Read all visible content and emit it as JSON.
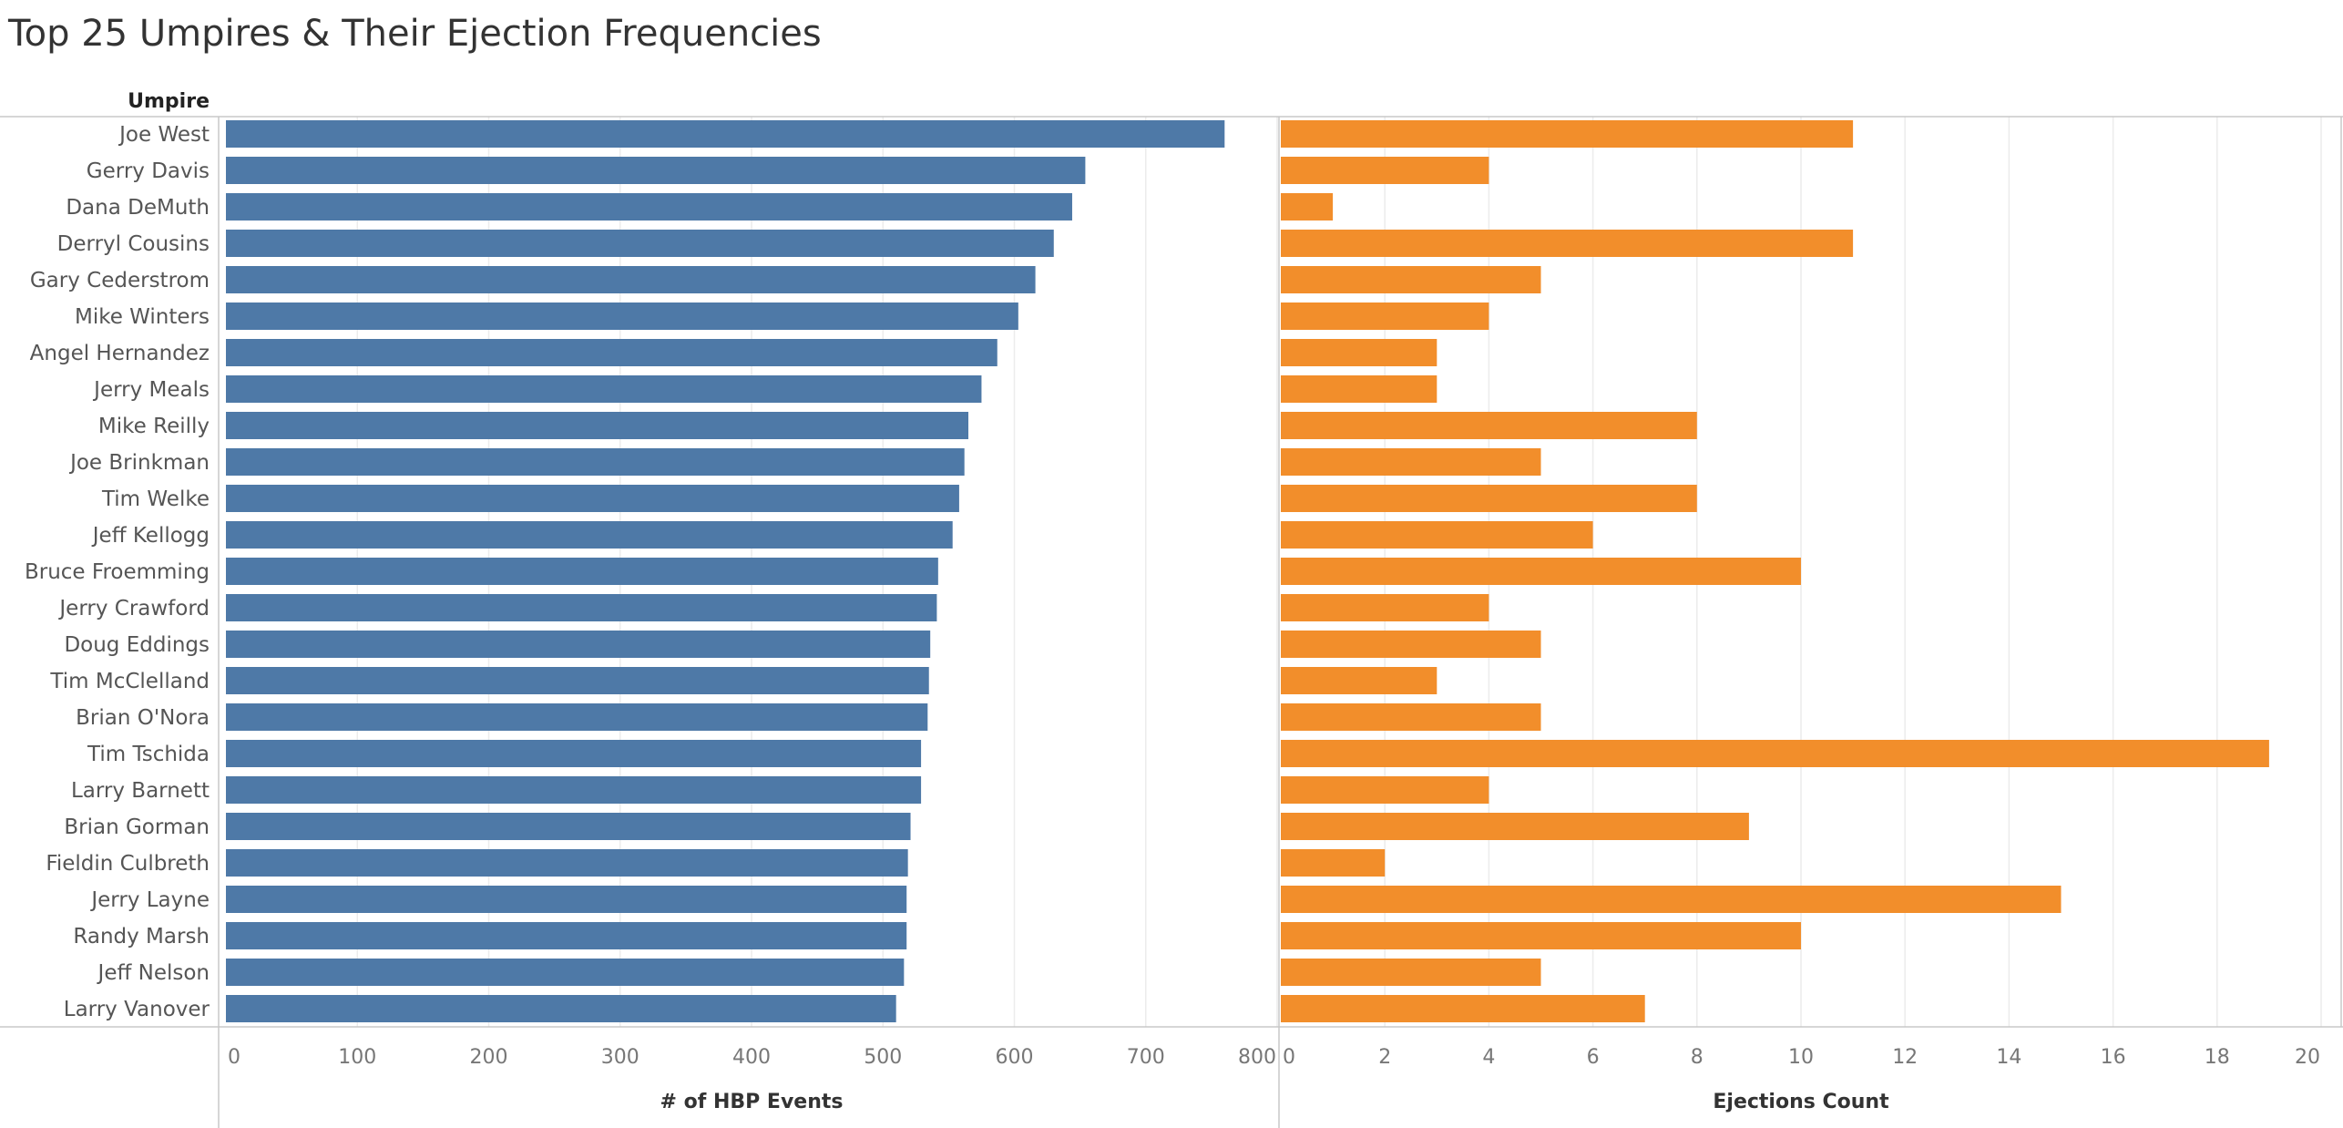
{
  "title": "Top 25 Umpires & Their Ejection Frequencies",
  "chart_data": {
    "type": "bar",
    "orientation": "horizontal",
    "row_header": "Umpire",
    "categories": [
      "Joe West",
      "Gerry Davis",
      "Dana DeMuth",
      "Derryl Cousins",
      "Gary Cederstrom",
      "Mike Winters",
      "Angel Hernandez",
      "Jerry Meals",
      "Mike Reilly",
      "Joe Brinkman",
      "Tim Welke",
      "Jeff Kellogg",
      "Bruce Froemming",
      "Jerry Crawford",
      "Doug Eddings",
      "Tim McClelland",
      "Brian O'Nora",
      "Tim Tschida",
      "Larry Barnett",
      "Brian Gorman",
      "Fieldin Culbreth",
      "Jerry Layne",
      "Randy Marsh",
      "Jeff Nelson",
      "Larry Vanover"
    ],
    "panels": [
      {
        "xlabel": "# of HBP Events",
        "xlim": [
          0,
          800
        ],
        "ticks": [
          0,
          100,
          200,
          300,
          400,
          500,
          600,
          700,
          800
        ],
        "color": "#4e79a7",
        "values": [
          760,
          654,
          644,
          630,
          616,
          603,
          587,
          575,
          565,
          562,
          558,
          553,
          542,
          541,
          536,
          535,
          534,
          529,
          529,
          521,
          519,
          518,
          518,
          516,
          510
        ]
      },
      {
        "xlabel": "Ejections Count",
        "xlim": [
          0,
          20
        ],
        "ticks": [
          0,
          2,
          4,
          6,
          8,
          10,
          12,
          14,
          16,
          18,
          20
        ],
        "color": "#f28e2b",
        "values": [
          11,
          4,
          1,
          11,
          5,
          4,
          3,
          3,
          8,
          5,
          8,
          6,
          10,
          4,
          5,
          3,
          5,
          19,
          4,
          9,
          2,
          15,
          10,
          5,
          7
        ]
      }
    ],
    "grid": true,
    "legend": "none"
  }
}
